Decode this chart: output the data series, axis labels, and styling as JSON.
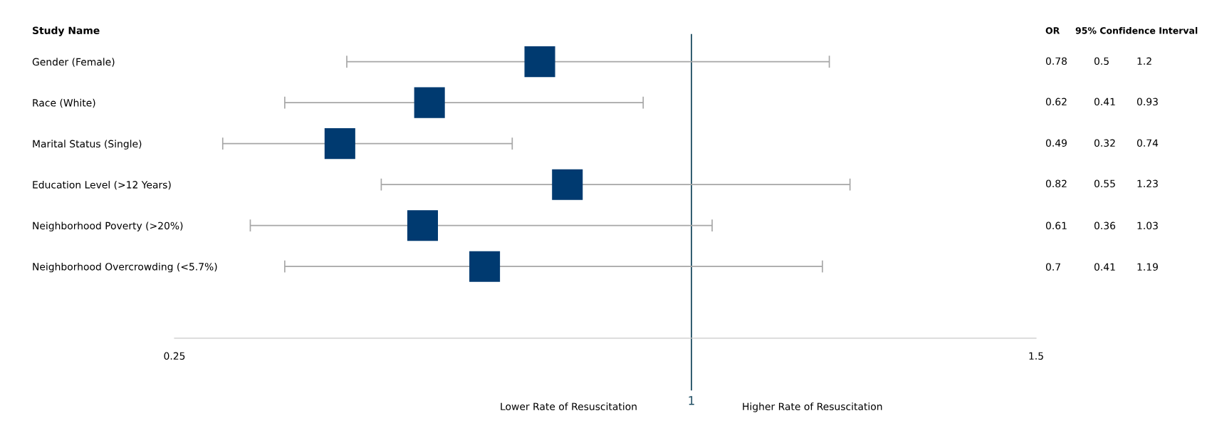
{
  "chart_data": {
    "type": "scatter",
    "orientation": "horizontal",
    "categories": [
      "Gender (Female)",
      "Race (White)",
      "Marital Status (Single)",
      "Education Level (>12 Years)",
      "Neighborhood Poverty (>20%)",
      "Neighborhood Overcrowding (<5.7%)"
    ],
    "values": [
      0.78,
      0.62,
      0.49,
      0.82,
      0.61,
      0.7
    ],
    "errors": [
      [
        0.5,
        1.2
      ],
      [
        0.41,
        0.93
      ],
      [
        0.32,
        0.74
      ],
      [
        0.55,
        1.23
      ],
      [
        0.36,
        1.03
      ],
      [
        0.41,
        1.19
      ]
    ],
    "color": "#003a70",
    "marker": "square",
    "grid": false,
    "xlim": [
      0.25,
      1.5
    ],
    "xticks": [
      0.25,
      1.5
    ],
    "ref_lines": [
      {
        "axis": "x",
        "value": 1,
        "label": "1",
        "color": "#1f4e63"
      }
    ],
    "annotations": [
      "Study Name",
      "OR",
      "95% Confidence Interval",
      "Lower Rate of Resuscitation",
      "Higher Rate of Resuscitation",
      "0.78",
      "0.5",
      "1.2",
      "0.62",
      "0.41",
      "0.93",
      "0.49",
      "0.32",
      "0.74",
      "0.82",
      "0.55",
      "1.23",
      "0.61",
      "0.36",
      "1.03",
      "0.7",
      "0.41",
      "1.19"
    ]
  }
}
